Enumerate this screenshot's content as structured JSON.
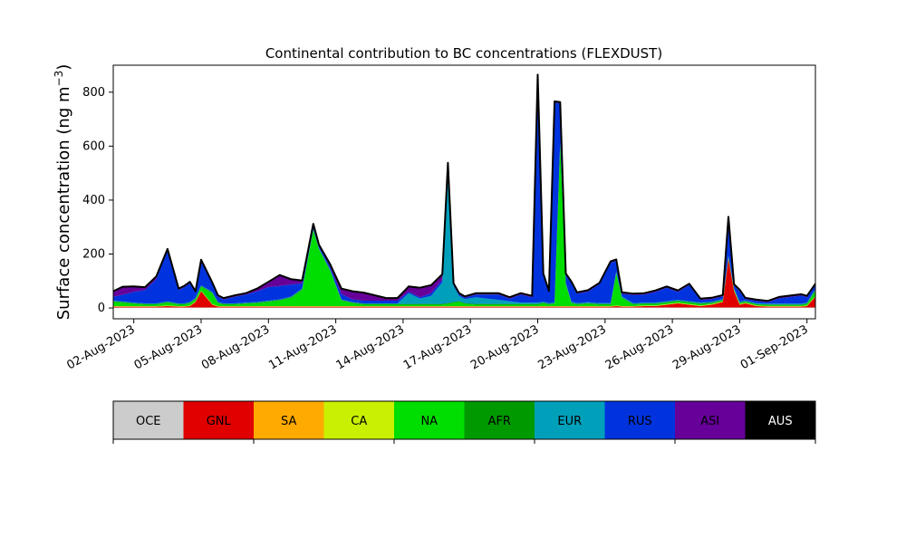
{
  "chart_data": {
    "type": "area",
    "stacked": true,
    "title": "Continental contribution to BC concentrations (FLEXDUST)",
    "xlabel": "",
    "ylabel": "Surface concentration (ng m",
    "ylabel_superscript": "−3",
    "ylabel_close": ")",
    "ylim": [
      -40,
      900
    ],
    "xlim": [
      "2023-08-01T02:00",
      "2023-09-01T09:00"
    ],
    "yticks": [
      0,
      200,
      400,
      600,
      800
    ],
    "xticks": [
      "02-Aug-2023",
      "05-Aug-2023",
      "08-Aug-2023",
      "11-Aug-2023",
      "14-Aug-2023",
      "17-Aug-2023",
      "20-Aug-2023",
      "23-Aug-2023",
      "26-Aug-2023",
      "29-Aug-2023",
      "01-Sep-2023"
    ],
    "xtick_dates": [
      "2023-08-02",
      "2023-08-05",
      "2023-08-08",
      "2023-08-11",
      "2023-08-14",
      "2023-08-17",
      "2023-08-20",
      "2023-08-23",
      "2023-08-26",
      "2023-08-29",
      "2023-09-01"
    ],
    "grid": false,
    "total_outline_color": "#000000",
    "x": [
      "2023-08-01T02:00",
      "2023-08-01T12:00",
      "2023-08-02T00:00",
      "2023-08-02T12:00",
      "2023-08-03T00:00",
      "2023-08-03T12:00",
      "2023-08-04T00:00",
      "2023-08-04T06:00",
      "2023-08-04T12:00",
      "2023-08-04T18:00",
      "2023-08-05T00:00",
      "2023-08-05T12:00",
      "2023-08-05T18:00",
      "2023-08-06T00:00",
      "2023-08-06T12:00",
      "2023-08-07T00:00",
      "2023-08-07T12:00",
      "2023-08-08T00:00",
      "2023-08-08T12:00",
      "2023-08-09T00:00",
      "2023-08-09T12:00",
      "2023-08-10T00:00",
      "2023-08-10T06:00",
      "2023-08-10T18:00",
      "2023-08-11T06:00",
      "2023-08-11T18:00",
      "2023-08-12T06:00",
      "2023-08-12T18:00",
      "2023-08-13T06:00",
      "2023-08-13T18:00",
      "2023-08-14T06:00",
      "2023-08-14T18:00",
      "2023-08-15T06:00",
      "2023-08-15T18:00",
      "2023-08-16T00:00",
      "2023-08-16T06:00",
      "2023-08-16T12:00",
      "2023-08-16T18:00",
      "2023-08-17T06:00",
      "2023-08-17T18:00",
      "2023-08-18T06:00",
      "2023-08-18T18:00",
      "2023-08-19T06:00",
      "2023-08-19T18:00",
      "2023-08-20T00:00",
      "2023-08-20T06:00",
      "2023-08-20T12:00",
      "2023-08-20T18:00",
      "2023-08-21T00:00",
      "2023-08-21T06:00",
      "2023-08-21T12:00",
      "2023-08-21T18:00",
      "2023-08-22T06:00",
      "2023-08-22T18:00",
      "2023-08-23T06:00",
      "2023-08-23T12:00",
      "2023-08-23T18:00",
      "2023-08-24T06:00",
      "2023-08-24T18:00",
      "2023-08-25T06:00",
      "2023-08-25T18:00",
      "2023-08-26T06:00",
      "2023-08-26T18:00",
      "2023-08-27T06:00",
      "2023-08-27T18:00",
      "2023-08-28T06:00",
      "2023-08-28T12:00",
      "2023-08-28T18:00",
      "2023-08-29T00:00",
      "2023-08-29T06:00",
      "2023-08-29T18:00",
      "2023-08-30T06:00",
      "2023-08-30T18:00",
      "2023-08-31T06:00",
      "2023-08-31T18:00",
      "2023-09-01T00:00",
      "2023-09-01T09:00"
    ],
    "series": [
      {
        "name": "OCE",
        "color": "#cccccc",
        "values": [
          2,
          2,
          2,
          2,
          2,
          2,
          2,
          2,
          2,
          2,
          2,
          2,
          2,
          2,
          2,
          2,
          2,
          2,
          2,
          2,
          2,
          2,
          2,
          2,
          2,
          2,
          2,
          2,
          2,
          2,
          2,
          2,
          2,
          2,
          2,
          2,
          2,
          2,
          2,
          2,
          2,
          2,
          2,
          2,
          2,
          2,
          2,
          2,
          2,
          2,
          2,
          2,
          2,
          2,
          2,
          2,
          2,
          2,
          2,
          2,
          2,
          2,
          2,
          2,
          2,
          2,
          2,
          2,
          2,
          2,
          2,
          2,
          2,
          2,
          2,
          2,
          2
        ]
      },
      {
        "name": "GNL",
        "color": "#e00000",
        "values": [
          3,
          3,
          3,
          3,
          3,
          5,
          3,
          3,
          5,
          20,
          60,
          10,
          3,
          3,
          3,
          3,
          3,
          3,
          3,
          3,
          3,
          3,
          3,
          3,
          3,
          3,
          3,
          3,
          3,
          3,
          3,
          3,
          3,
          3,
          3,
          3,
          3,
          3,
          3,
          3,
          3,
          3,
          3,
          3,
          3,
          3,
          3,
          3,
          3,
          3,
          3,
          3,
          3,
          3,
          3,
          5,
          3,
          3,
          5,
          5,
          10,
          15,
          10,
          5,
          10,
          20,
          180,
          60,
          10,
          15,
          5,
          3,
          3,
          3,
          3,
          5,
          40
        ]
      },
      {
        "name": "SA",
        "color": "#ffaa00",
        "values": [
          1,
          1,
          1,
          1,
          1,
          1,
          1,
          1,
          1,
          1,
          1,
          1,
          1,
          1,
          1,
          1,
          1,
          1,
          1,
          1,
          1,
          1,
          1,
          1,
          1,
          1,
          1,
          1,
          1,
          1,
          1,
          1,
          1,
          1,
          1,
          1,
          1,
          1,
          1,
          1,
          1,
          1,
          1,
          1,
          1,
          1,
          1,
          1,
          1,
          1,
          1,
          1,
          1,
          1,
          1,
          1,
          1,
          1,
          1,
          1,
          1,
          1,
          1,
          1,
          1,
          1,
          1,
          1,
          1,
          1,
          1,
          1,
          1,
          1,
          1,
          1,
          1
        ]
      },
      {
        "name": "CA",
        "color": "#c8f000",
        "values": [
          1,
          1,
          1,
          1,
          1,
          1,
          1,
          1,
          1,
          1,
          1,
          1,
          1,
          1,
          1,
          1,
          1,
          1,
          1,
          1,
          1,
          1,
          1,
          1,
          1,
          1,
          1,
          1,
          1,
          1,
          1,
          1,
          1,
          1,
          1,
          1,
          1,
          1,
          1,
          1,
          1,
          1,
          1,
          1,
          1,
          1,
          1,
          1,
          1,
          1,
          1,
          1,
          1,
          1,
          1,
          1,
          1,
          1,
          1,
          1,
          1,
          1,
          1,
          1,
          1,
          1,
          1,
          1,
          1,
          1,
          1,
          1,
          1,
          1,
          1,
          1,
          1
        ]
      },
      {
        "name": "NA",
        "color": "#00dd00",
        "values": [
          15,
          12,
          8,
          5,
          5,
          10,
          5,
          5,
          8,
          8,
          15,
          40,
          10,
          5,
          5,
          8,
          10,
          15,
          20,
          30,
          60,
          280,
          210,
          130,
          20,
          10,
          5,
          5,
          5,
          5,
          5,
          5,
          5,
          5,
          8,
          12,
          15,
          8,
          5,
          5,
          5,
          5,
          5,
          5,
          5,
          10,
          5,
          8,
          600,
          80,
          10,
          5,
          8,
          5,
          5,
          120,
          30,
          5,
          5,
          5,
          5,
          5,
          5,
          5,
          3,
          3,
          3,
          3,
          3,
          3,
          3,
          3,
          3,
          3,
          3,
          5,
          20
        ]
      },
      {
        "name": "AFR",
        "color": "#009900",
        "values": [
          3,
          3,
          3,
          3,
          3,
          3,
          3,
          3,
          3,
          3,
          3,
          3,
          3,
          3,
          3,
          3,
          3,
          3,
          3,
          3,
          3,
          3,
          3,
          3,
          3,
          3,
          3,
          3,
          3,
          3,
          3,
          3,
          3,
          3,
          3,
          3,
          3,
          3,
          3,
          3,
          3,
          3,
          3,
          3,
          3,
          3,
          3,
          3,
          3,
          3,
          3,
          3,
          3,
          3,
          3,
          3,
          3,
          3,
          3,
          3,
          3,
          3,
          3,
          3,
          3,
          3,
          3,
          3,
          3,
          3,
          3,
          3,
          3,
          3,
          3,
          3,
          3
        ]
      },
      {
        "name": "EUR",
        "color": "#00a0bb",
        "values": [
          2,
          2,
          2,
          2,
          2,
          2,
          2,
          2,
          2,
          2,
          2,
          2,
          2,
          2,
          2,
          2,
          2,
          2,
          2,
          2,
          2,
          2,
          2,
          2,
          2,
          2,
          2,
          2,
          2,
          2,
          40,
          20,
          30,
          80,
          510,
          60,
          20,
          15,
          25,
          20,
          15,
          10,
          5,
          5,
          5,
          3,
          3,
          3,
          3,
          3,
          3,
          3,
          3,
          3,
          3,
          3,
          3,
          3,
          3,
          3,
          3,
          3,
          3,
          3,
          3,
          3,
          3,
          3,
          3,
          3,
          3,
          3,
          3,
          3,
          3,
          3,
          3
        ]
      },
      {
        "name": "RUS",
        "color": "#0033dd",
        "values": [
          15,
          25,
          40,
          50,
          90,
          190,
          50,
          60,
          70,
          20,
          90,
          30,
          20,
          15,
          25,
          30,
          40,
          50,
          50,
          45,
          20,
          10,
          8,
          10,
          20,
          10,
          10,
          10,
          10,
          10,
          5,
          5,
          10,
          10,
          5,
          5,
          5,
          5,
          10,
          15,
          20,
          10,
          30,
          20,
          840,
          100,
          40,
          740,
          145,
          30,
          70,
          35,
          40,
          70,
          150,
          40,
          10,
          30,
          30,
          40,
          50,
          30,
          60,
          10,
          10,
          10,
          140,
          10,
          40,
          5,
          8,
          5,
          20,
          25,
          30,
          20,
          15
        ]
      },
      {
        "name": "ASI",
        "color": "#660099",
        "values": [
          20,
          30,
          20,
          10,
          10,
          5,
          5,
          5,
          5,
          5,
          5,
          5,
          5,
          5,
          5,
          5,
          10,
          20,
          40,
          20,
          10,
          10,
          5,
          10,
          20,
          30,
          30,
          20,
          10,
          10,
          20,
          35,
          30,
          20,
          5,
          5,
          5,
          5,
          5,
          5,
          5,
          5,
          5,
          5,
          5,
          5,
          5,
          5,
          5,
          5,
          5,
          5,
          5,
          5,
          5,
          5,
          5,
          5,
          5,
          5,
          5,
          5,
          5,
          5,
          5,
          5,
          5,
          5,
          5,
          5,
          5,
          5,
          5,
          5,
          5,
          5,
          5
        ]
      },
      {
        "name": "AUS",
        "color": "#000000",
        "values": [
          0,
          0,
          0,
          0,
          0,
          0,
          0,
          0,
          0,
          0,
          0,
          0,
          0,
          0,
          0,
          0,
          0,
          0,
          0,
          0,
          0,
          0,
          0,
          0,
          0,
          0,
          0,
          0,
          0,
          0,
          0,
          0,
          0,
          0,
          0,
          0,
          0,
          0,
          0,
          0,
          0,
          0,
          0,
          0,
          0,
          0,
          0,
          0,
          0,
          0,
          0,
          0,
          0,
          0,
          0,
          0,
          0,
          0,
          0,
          0,
          0,
          0,
          0,
          0,
          0,
          0,
          0,
          0,
          0,
          0,
          0,
          0,
          0,
          0,
          0,
          0,
          0
        ]
      }
    ],
    "legend": {
      "placement": "bottom",
      "style": "colorbar",
      "items": [
        "OCE",
        "GNL",
        "SA",
        "CA",
        "NA",
        "AFR",
        "EUR",
        "RUS",
        "ASI",
        "AUS"
      ],
      "text_colors": [
        "#000000",
        "#000000",
        "#000000",
        "#000000",
        "#000000",
        "#000000",
        "#000000",
        "#000000",
        "#000000",
        "#ffffff"
      ]
    }
  }
}
